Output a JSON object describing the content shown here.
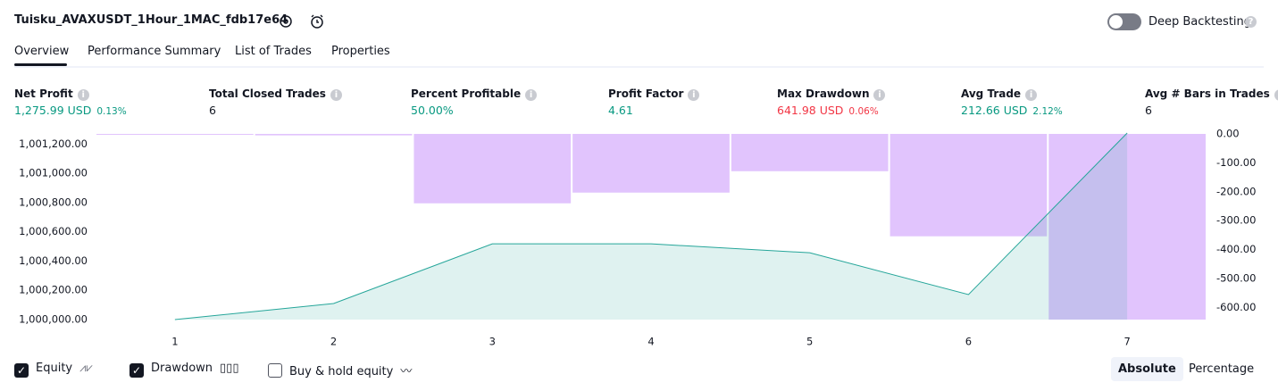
{
  "header": {
    "title": "Tuisku_AVAXUSDT_1Hour_1MAC_fdb17e64",
    "deep_backtesting": "Deep Backtesting"
  },
  "tabs": [
    "Overview",
    "Performance Summary",
    "List of Trades",
    "Properties"
  ],
  "metrics": [
    {
      "label": "Net Profit",
      "value": "1,275.99 USD",
      "sub": "0.13%"
    },
    {
      "label": "Total Closed Trades",
      "value": "6"
    },
    {
      "label": "Percent Profitable",
      "value": "50.00%"
    },
    {
      "label": "Profit Factor",
      "value": "4.61"
    },
    {
      "label": "Max Drawdown",
      "value": "641.98 USD",
      "sub": "0.06%"
    },
    {
      "label": "Avg Trade",
      "value": "212.66 USD",
      "sub": "2.12%"
    },
    {
      "label": "Avg # Bars in Trades",
      "value": "6"
    }
  ],
  "chart_data": {
    "type": "combo",
    "x": [
      1,
      2,
      3,
      4,
      5,
      6,
      7
    ],
    "xlim": [
      0.5,
      7.5
    ],
    "xticks": [
      1,
      2,
      3,
      4,
      5,
      6,
      7
    ],
    "ylim": [
      1000000,
      1001270
    ],
    "yticks": [
      {
        "value": 1000000,
        "label": "1,000,000.00"
      },
      {
        "value": 1000200,
        "label": "1,000,200.00"
      },
      {
        "value": 1000400,
        "label": "1,000,400.00"
      },
      {
        "value": 1000600,
        "label": "1,000,600.00"
      },
      {
        "value": 1000800,
        "label": "1,000,800.00"
      },
      {
        "value": 1001000,
        "label": "1,001,000.00"
      },
      {
        "value": 1001200,
        "label": "1,001,200.00"
      }
    ],
    "y2lim": [
      -642,
      0
    ],
    "y2ticks": [
      {
        "value": 0,
        "label": "0.00"
      },
      {
        "value": -100,
        "label": "-100.00"
      },
      {
        "value": -200,
        "label": "-200.00"
      },
      {
        "value": -300,
        "label": "-300.00"
      },
      {
        "value": -400,
        "label": "-400.00"
      },
      {
        "value": -500,
        "label": "-500.00"
      },
      {
        "value": -600,
        "label": "-600.00"
      }
    ],
    "series": [
      {
        "name": "Drawdown",
        "type": "bar",
        "axis": "y2",
        "color": "#e1c4fd",
        "values": [
          -2,
          -5,
          -240,
          -203,
          -129,
          -354,
          -642
        ]
      },
      {
        "name": "Equity",
        "type": "area",
        "color": "#26a69a",
        "values": [
          1000000,
          1000110,
          1000518,
          1000518,
          1000457,
          1000171,
          1001276
        ]
      }
    ]
  },
  "footer": {
    "buy_hold": "Buy & hold equity",
    "scale_modes": [
      "Absolute",
      "Percentage"
    ]
  }
}
